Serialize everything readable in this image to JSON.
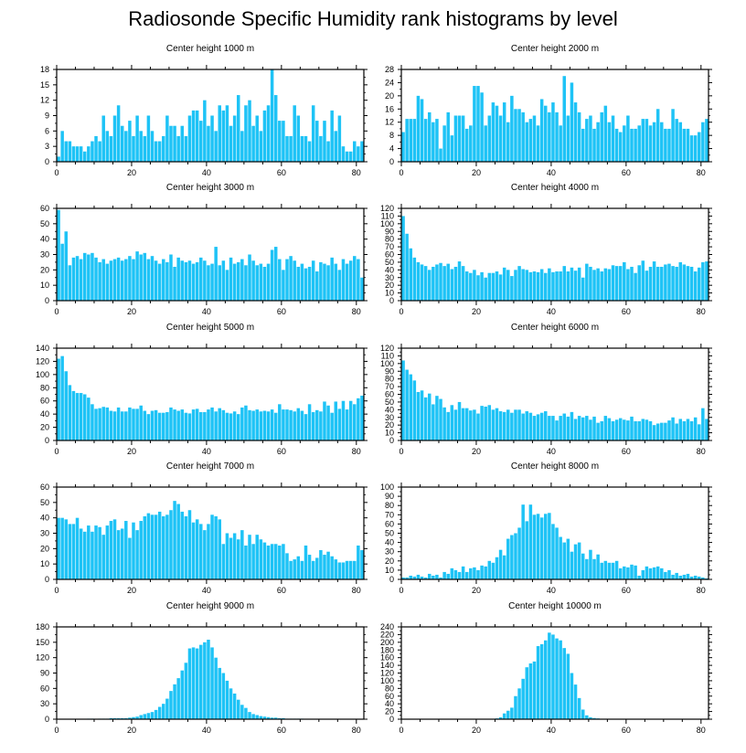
{
  "title": "Radiosonde Specific Humidity rank histograms by level",
  "bar_color": "#1ec3f6",
  "chart_data": [
    {
      "type": "bar",
      "title": "Center height 1000 m",
      "xlim": [
        0,
        82
      ],
      "ylim": [
        0,
        18
      ],
      "xticks": [
        0,
        20,
        40,
        60,
        80
      ],
      "yticks": [
        0,
        3,
        6,
        9,
        12,
        15,
        18
      ],
      "values": [
        1,
        6,
        4,
        4,
        3,
        3,
        3,
        2,
        3,
        4,
        5,
        4,
        9,
        6,
        5,
        9,
        11,
        7,
        6,
        8,
        5,
        9,
        6,
        5,
        9,
        6,
        4,
        4,
        5,
        9,
        7,
        7,
        5,
        7,
        5,
        9,
        10,
        10,
        8,
        12,
        7,
        9,
        6,
        11,
        10,
        11,
        7,
        9,
        13,
        6,
        11,
        12,
        7,
        9,
        6,
        10,
        11,
        18,
        13,
        8,
        8,
        5,
        5,
        11,
        9,
        5,
        5,
        4,
        11,
        8,
        5,
        8,
        4,
        10,
        6,
        9,
        3,
        2,
        2,
        4,
        3,
        4
      ]
    },
    {
      "type": "bar",
      "title": "Center height 2000 m",
      "xlim": [
        0,
        82
      ],
      "ylim": [
        0,
        28
      ],
      "xticks": [
        0,
        20,
        40,
        60,
        80
      ],
      "yticks": [
        0,
        4,
        8,
        12,
        16,
        20,
        24,
        28
      ],
      "values": [
        9,
        13,
        13,
        13,
        20,
        19,
        13,
        15,
        12,
        13,
        4,
        11,
        15,
        8,
        14,
        14,
        14,
        10,
        11,
        23,
        23,
        21,
        11,
        14,
        18,
        17,
        14,
        18,
        12,
        20,
        16,
        16,
        15,
        12,
        13,
        14,
        11,
        19,
        17,
        15,
        18,
        15,
        11,
        26,
        14,
        24,
        18,
        15,
        10,
        13,
        14,
        10,
        12,
        15,
        17,
        12,
        14,
        10,
        9,
        11,
        14,
        10,
        10,
        11,
        13,
        13,
        11,
        12,
        16,
        12,
        10,
        10,
        16,
        13,
        12,
        10,
        10,
        8,
        8,
        9,
        12,
        13
      ]
    },
    {
      "type": "bar",
      "title": "Center height 3000 m",
      "xlim": [
        0,
        82
      ],
      "ylim": [
        0,
        60
      ],
      "xticks": [
        0,
        20,
        40,
        60,
        80
      ],
      "yticks": [
        0,
        10,
        20,
        30,
        40,
        50,
        60
      ],
      "values": [
        59,
        37,
        45,
        23,
        28,
        29,
        27,
        31,
        30,
        31,
        28,
        25,
        27,
        24,
        26,
        27,
        28,
        26,
        27,
        29,
        27,
        32,
        30,
        31,
        27,
        29,
        26,
        24,
        27,
        25,
        30,
        22,
        28,
        26,
        25,
        26,
        24,
        25,
        28,
        26,
        23,
        24,
        35,
        23,
        26,
        20,
        28,
        24,
        25,
        27,
        23,
        30,
        26,
        23,
        24,
        22,
        24,
        33,
        35,
        27,
        20,
        27,
        29,
        26,
        22,
        24,
        21,
        22,
        26,
        19,
        25,
        24,
        23,
        28,
        24,
        20,
        27,
        24,
        26,
        29,
        27,
        15
      ]
    },
    {
      "type": "bar",
      "title": "Center height 4000 m",
      "xlim": [
        0,
        82
      ],
      "ylim": [
        0,
        120
      ],
      "xticks": [
        0,
        20,
        40,
        60,
        80
      ],
      "yticks": [
        0,
        10,
        20,
        30,
        40,
        50,
        60,
        70,
        80,
        90,
        100,
        110,
        120
      ],
      "values": [
        110,
        87,
        68,
        56,
        50,
        47,
        45,
        40,
        44,
        47,
        49,
        45,
        48,
        41,
        44,
        51,
        45,
        38,
        36,
        40,
        33,
        37,
        30,
        36,
        36,
        38,
        34,
        43,
        40,
        32,
        40,
        45,
        41,
        40,
        37,
        38,
        37,
        41,
        36,
        42,
        37,
        38,
        38,
        45,
        38,
        43,
        39,
        43,
        30,
        48,
        44,
        40,
        42,
        38,
        42,
        41,
        46,
        45,
        45,
        50,
        41,
        44,
        36,
        46,
        52,
        39,
        44,
        51,
        44,
        44,
        47,
        48,
        45,
        44,
        50,
        47,
        45,
        44,
        38,
        43,
        50,
        51
      ]
    },
    {
      "type": "bar",
      "title": "Center height 5000 m",
      "xlim": [
        0,
        82
      ],
      "ylim": [
        0,
        140
      ],
      "xticks": [
        0,
        20,
        40,
        60,
        80
      ],
      "yticks": [
        0,
        20,
        40,
        60,
        80,
        100,
        120,
        140
      ],
      "values": [
        124,
        128,
        105,
        84,
        75,
        72,
        72,
        70,
        65,
        55,
        48,
        49,
        51,
        50,
        45,
        44,
        50,
        44,
        44,
        50,
        48,
        48,
        53,
        45,
        40,
        45,
        46,
        42,
        42,
        43,
        50,
        47,
        45,
        47,
        42,
        41,
        47,
        48,
        43,
        43,
        47,
        50,
        44,
        49,
        46,
        42,
        41,
        44,
        40,
        50,
        53,
        46,
        45,
        47,
        44,
        45,
        44,
        47,
        42,
        55,
        47,
        47,
        46,
        44,
        49,
        45,
        40,
        55,
        43,
        46,
        44,
        59,
        53,
        42,
        59,
        48,
        60,
        47,
        60,
        55,
        64,
        68
      ]
    },
    {
      "type": "bar",
      "title": "Center height 6000 m",
      "xlim": [
        0,
        82
      ],
      "ylim": [
        0,
        120
      ],
      "xticks": [
        0,
        20,
        40,
        60,
        80
      ],
      "yticks": [
        0,
        10,
        20,
        30,
        40,
        50,
        60,
        70,
        80,
        90,
        100,
        110,
        120
      ],
      "values": [
        104,
        92,
        86,
        78,
        63,
        65,
        56,
        61,
        47,
        58,
        54,
        43,
        37,
        46,
        40,
        50,
        42,
        42,
        39,
        40,
        35,
        45,
        44,
        46,
        40,
        42,
        38,
        37,
        40,
        36,
        40,
        40,
        35,
        38,
        36,
        32,
        34,
        36,
        38,
        32,
        32,
        26,
        32,
        35,
        31,
        37,
        28,
        32,
        30,
        32,
        27,
        31,
        23,
        25,
        32,
        29,
        25,
        27,
        29,
        27,
        26,
        31,
        25,
        25,
        28,
        27,
        25,
        20,
        22,
        23,
        23,
        26,
        30,
        22,
        28,
        25,
        28,
        25,
        30,
        21,
        42,
        28
      ]
    },
    {
      "type": "bar",
      "title": "Center height 7000 m",
      "xlim": [
        0,
        82
      ],
      "ylim": [
        0,
        60
      ],
      "xticks": [
        0,
        20,
        40,
        60,
        80
      ],
      "yticks": [
        0,
        10,
        20,
        30,
        40,
        50,
        60
      ],
      "values": [
        40,
        40,
        39,
        36,
        36,
        40,
        33,
        31,
        35,
        31,
        35,
        34,
        29,
        35,
        38,
        39,
        32,
        33,
        38,
        27,
        37,
        32,
        38,
        41,
        43,
        42,
        42,
        44,
        41,
        42,
        45,
        51,
        49,
        44,
        41,
        45,
        37,
        39,
        36,
        32,
        36,
        42,
        41,
        39,
        23,
        30,
        27,
        30,
        26,
        32,
        22,
        29,
        23,
        29,
        26,
        24,
        22,
        23,
        23,
        22,
        23,
        17,
        12,
        13,
        15,
        12,
        22,
        16,
        12,
        14,
        19,
        16,
        18,
        15,
        13,
        11,
        11,
        12,
        12,
        12,
        22,
        19
      ]
    },
    {
      "type": "bar",
      "title": "Center height 8000 m",
      "xlim": [
        0,
        82
      ],
      "ylim": [
        0,
        100
      ],
      "xticks": [
        0,
        20,
        40,
        60,
        80
      ],
      "yticks": [
        0,
        10,
        20,
        30,
        40,
        50,
        60,
        70,
        80,
        90,
        100
      ],
      "values": [
        2,
        2,
        4,
        3,
        5,
        3,
        2,
        6,
        4,
        5,
        2,
        8,
        6,
        12,
        10,
        8,
        14,
        8,
        12,
        13,
        10,
        15,
        14,
        20,
        18,
        24,
        32,
        26,
        44,
        48,
        50,
        56,
        81,
        63,
        81,
        70,
        71,
        67,
        71,
        72,
        60,
        56,
        46,
        40,
        44,
        30,
        38,
        40,
        28,
        22,
        32,
        22,
        27,
        18,
        20,
        18,
        18,
        20,
        12,
        14,
        13,
        16,
        15,
        4,
        10,
        14,
        12,
        13,
        14,
        12,
        8,
        10,
        5,
        7,
        4,
        5,
        6,
        3,
        4,
        3,
        2,
        1
      ]
    },
    {
      "type": "bar",
      "title": "Center height 9000 m",
      "xlim": [
        0,
        82
      ],
      "ylim": [
        0,
        180
      ],
      "xticks": [
        0,
        20,
        40,
        60,
        80
      ],
      "yticks": [
        0,
        30,
        60,
        90,
        120,
        150,
        180
      ],
      "values": [
        0,
        0,
        0,
        0,
        0,
        0,
        0,
        0,
        1,
        1,
        0,
        1,
        1,
        1,
        2,
        2,
        2,
        2,
        2,
        3,
        4,
        5,
        8,
        10,
        12,
        14,
        18,
        24,
        30,
        40,
        55,
        68,
        80,
        95,
        110,
        138,
        140,
        138,
        145,
        150,
        155,
        140,
        120,
        100,
        90,
        75,
        60,
        50,
        38,
        28,
        22,
        14,
        10,
        8,
        6,
        5,
        4,
        3,
        3,
        2,
        2,
        1,
        1,
        1,
        1,
        1,
        0,
        0,
        0,
        0,
        0,
        0,
        0,
        0,
        0,
        0,
        0,
        0,
        0,
        0,
        0,
        0
      ]
    },
    {
      "type": "bar",
      "title": "Center height 10000 m",
      "xlim": [
        0,
        82
      ],
      "ylim": [
        0,
        240
      ],
      "xticks": [
        0,
        20,
        40,
        60,
        80
      ],
      "yticks": [
        0,
        20,
        40,
        60,
        80,
        100,
        120,
        140,
        160,
        180,
        200,
        220,
        240
      ],
      "values": [
        0,
        0,
        0,
        0,
        0,
        0,
        0,
        0,
        0,
        0,
        0,
        0,
        0,
        0,
        0,
        0,
        0,
        0,
        0,
        0,
        0,
        0,
        0,
        0,
        1,
        2,
        5,
        15,
        22,
        30,
        60,
        80,
        105,
        135,
        145,
        150,
        190,
        195,
        205,
        225,
        220,
        210,
        205,
        185,
        170,
        120,
        90,
        55,
        25,
        10,
        5,
        3,
        2,
        1,
        1,
        1,
        1,
        1,
        0,
        0,
        0,
        0,
        0,
        0,
        0,
        0,
        0,
        0,
        0,
        0,
        0,
        0,
        0,
        0,
        0,
        0,
        0,
        0,
        0,
        0,
        0,
        0
      ]
    }
  ]
}
